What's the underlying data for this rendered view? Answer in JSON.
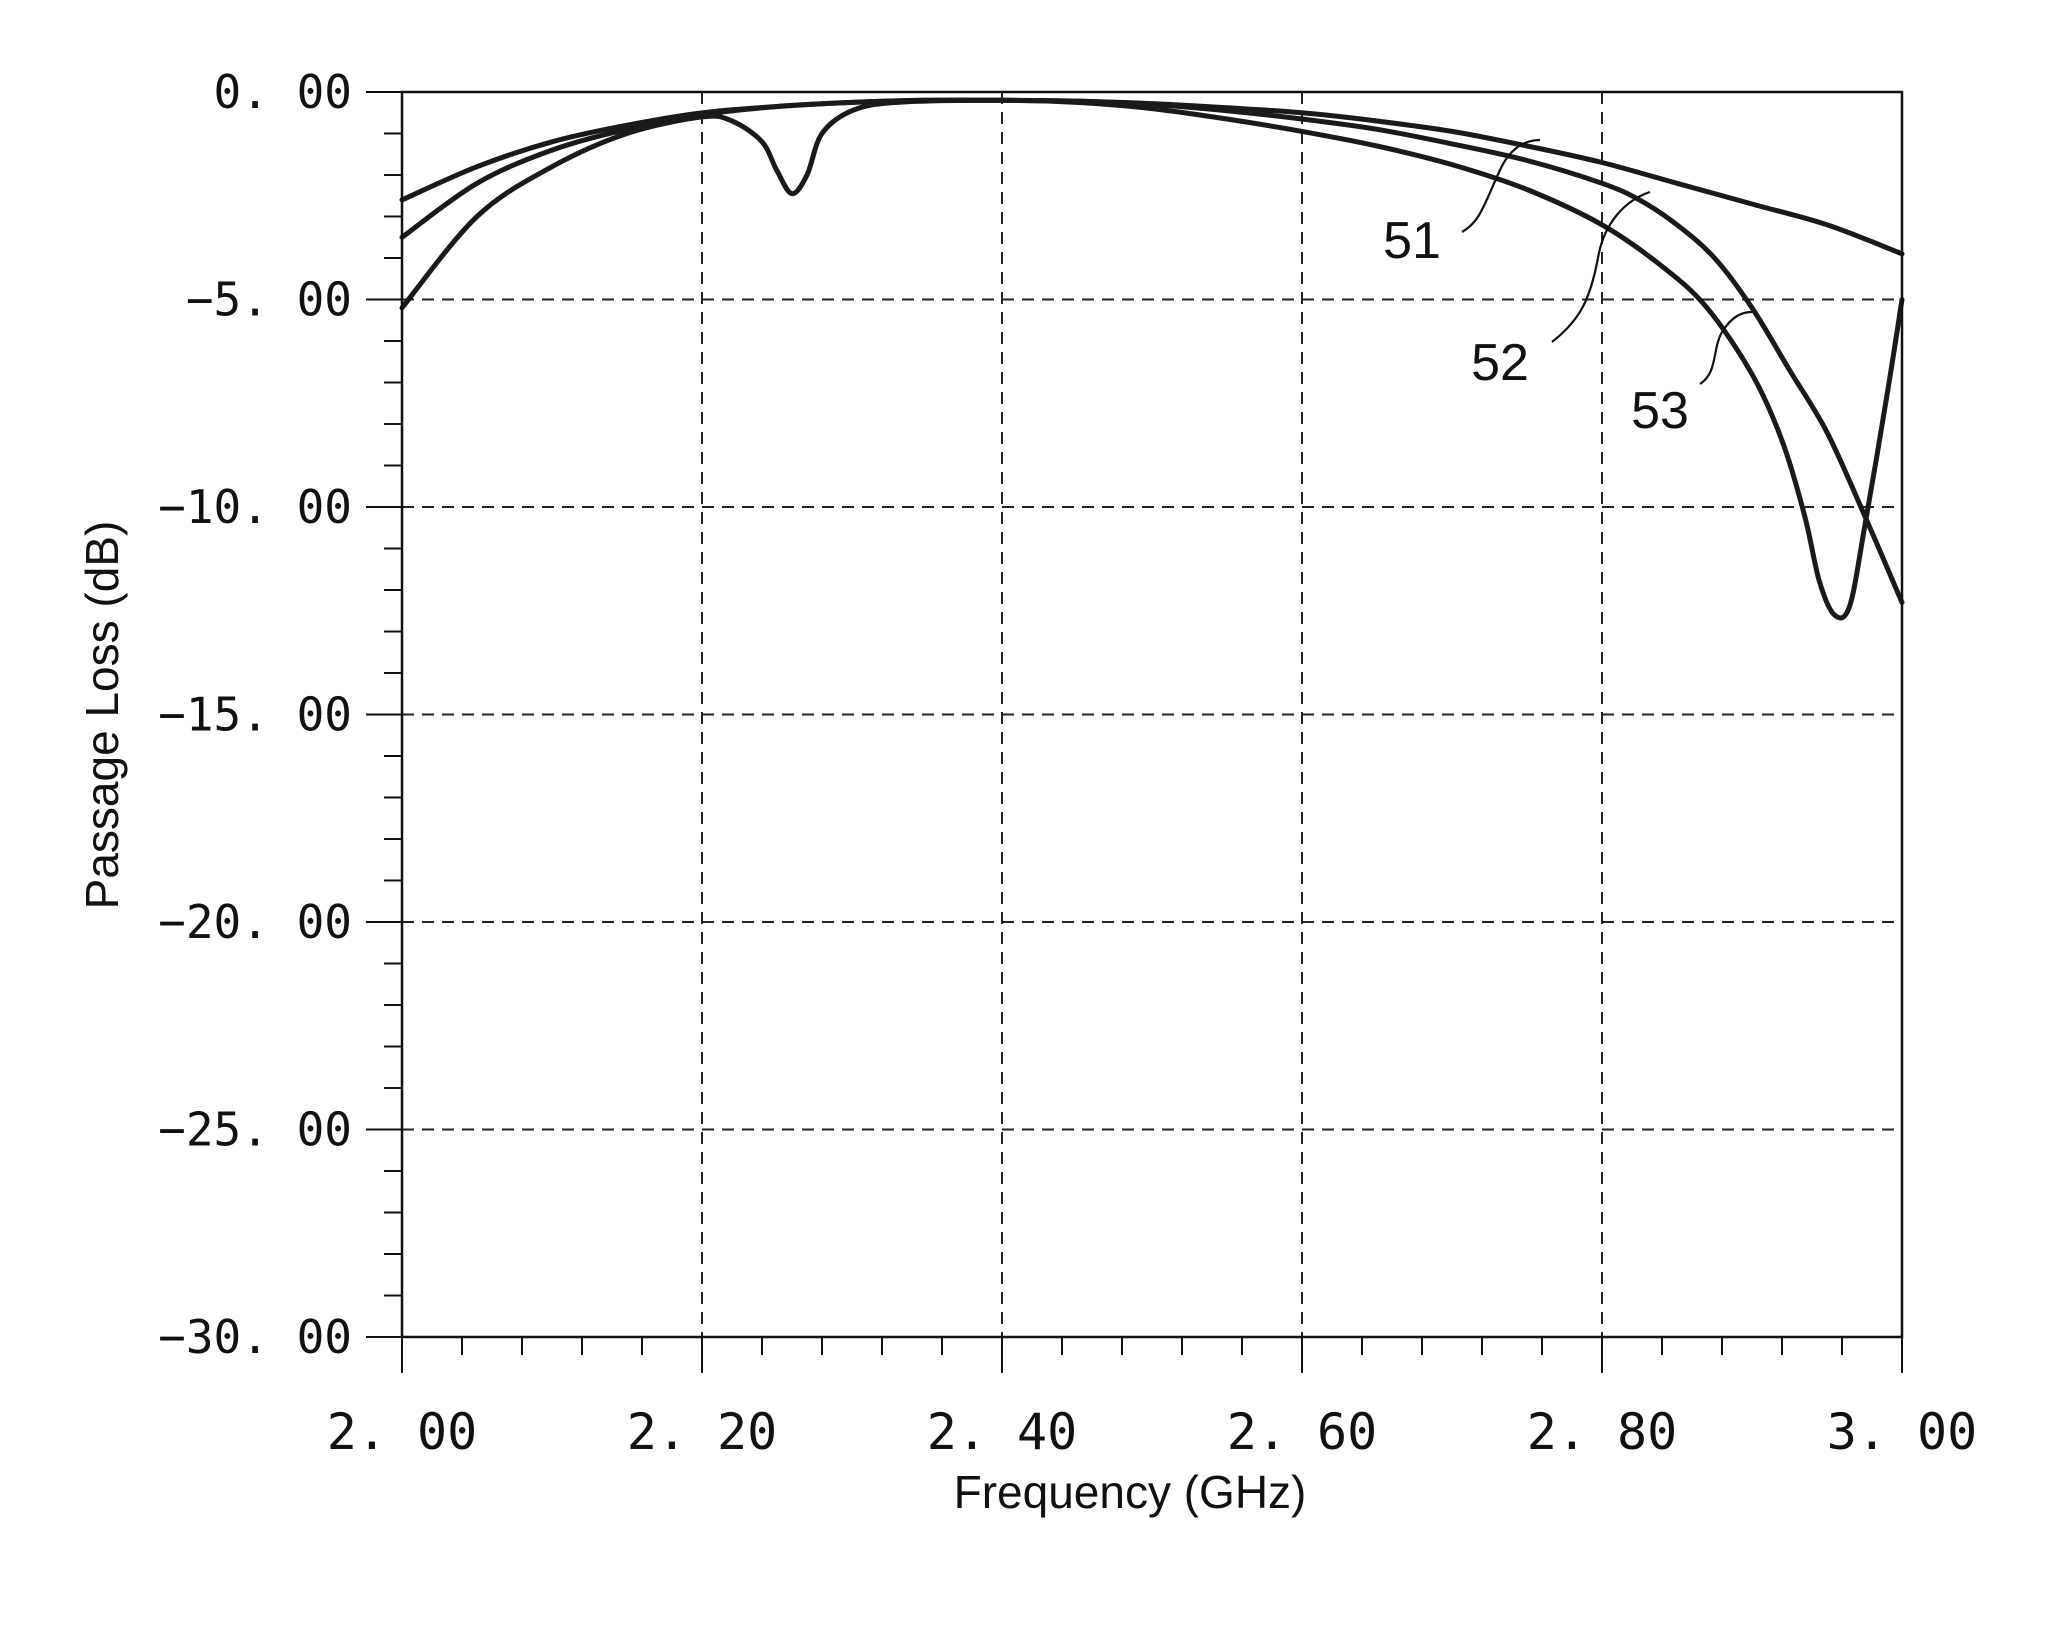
{
  "chart_data": {
    "type": "line",
    "title": "",
    "xlabel": "Frequency (GHz)",
    "ylabel": "Passage Loss (dB)",
    "xlim": [
      2.0,
      3.0
    ],
    "ylim": [
      -30.0,
      0.0
    ],
    "xticks": [
      "2.00",
      "2.20",
      "2.40",
      "2.60",
      "2.80",
      "3.00"
    ],
    "yticks": [
      "0.00",
      "-5.00",
      "-10.00",
      "-15.00",
      "-20.00",
      "-25.00",
      "-30.00"
    ],
    "grid": true,
    "legend": "none",
    "series": [
      {
        "name": "51",
        "x": [
          2.0,
          2.05,
          2.1,
          2.15,
          2.2,
          2.25,
          2.3,
          2.35,
          2.4,
          2.45,
          2.5,
          2.55,
          2.6,
          2.65,
          2.7,
          2.75,
          2.8,
          2.85,
          2.9,
          2.95,
          3.0
        ],
        "y": [
          -2.6,
          -1.8,
          -1.2,
          -0.8,
          -0.5,
          -0.35,
          -0.25,
          -0.2,
          -0.2,
          -0.22,
          -0.28,
          -0.38,
          -0.5,
          -0.7,
          -0.95,
          -1.3,
          -1.7,
          -2.2,
          -2.7,
          -3.2,
          -3.9
        ]
      },
      {
        "name": "52",
        "x": [
          2.0,
          2.05,
          2.1,
          2.15,
          2.2,
          2.25,
          2.3,
          2.35,
          2.4,
          2.45,
          2.5,
          2.55,
          2.6,
          2.65,
          2.7,
          2.75,
          2.8,
          2.825,
          2.85,
          2.875,
          2.9,
          2.925,
          2.95,
          2.975,
          3.0
        ],
        "y": [
          -3.5,
          -2.2,
          -1.4,
          -0.9,
          -0.55,
          -0.35,
          -0.25,
          -0.2,
          -0.2,
          -0.22,
          -0.3,
          -0.45,
          -0.65,
          -0.9,
          -1.25,
          -1.65,
          -2.2,
          -2.6,
          -3.2,
          -4.0,
          -5.2,
          -6.7,
          -8.2,
          -10.2,
          -12.3
        ]
      },
      {
        "name": "53",
        "x": [
          2.0,
          2.05,
          2.1,
          2.15,
          2.2,
          2.22,
          2.24,
          2.25,
          2.26,
          2.27,
          2.28,
          2.3,
          2.33,
          2.4,
          2.45,
          2.5,
          2.55,
          2.6,
          2.65,
          2.7,
          2.75,
          2.8,
          2.84,
          2.87,
          2.9,
          2.92,
          2.935,
          2.945,
          2.955,
          2.965,
          2.975,
          2.99,
          3.0
        ],
        "y": [
          -5.2,
          -3.0,
          -1.8,
          -1.0,
          -0.6,
          -0.7,
          -1.2,
          -1.9,
          -2.45,
          -2.0,
          -1.0,
          -0.45,
          -0.25,
          -0.2,
          -0.25,
          -0.4,
          -0.65,
          -0.95,
          -1.3,
          -1.75,
          -2.35,
          -3.2,
          -4.2,
          -5.2,
          -6.8,
          -8.4,
          -10.2,
          -11.8,
          -12.6,
          -12.4,
          -10.5,
          -7.3,
          -5.0
        ]
      }
    ]
  }
}
